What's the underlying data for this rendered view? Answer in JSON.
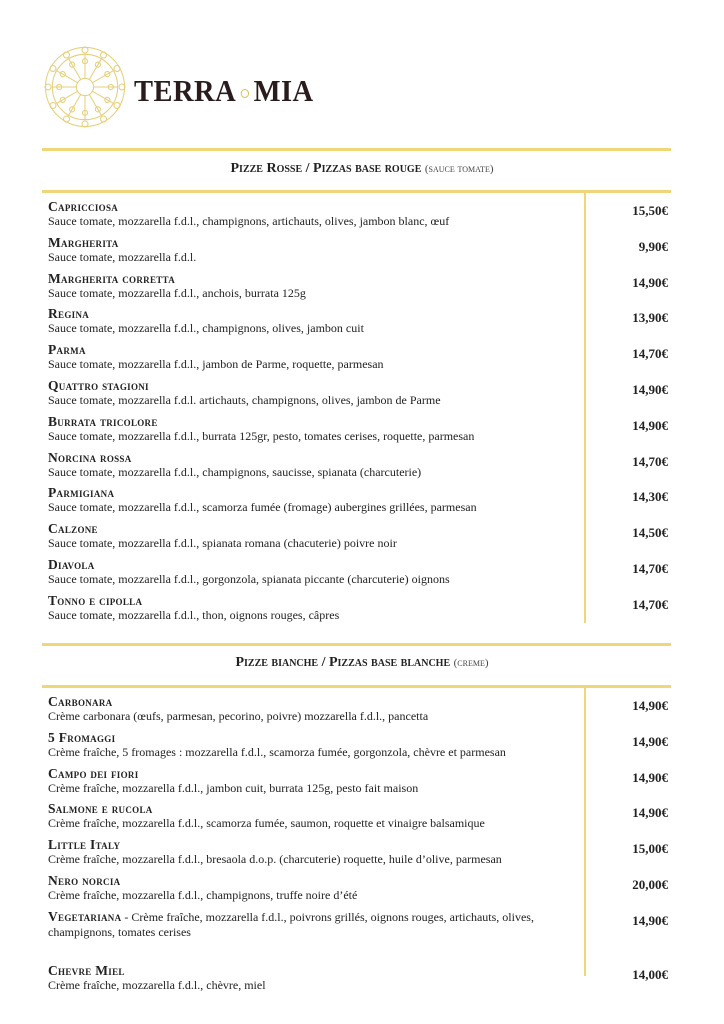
{
  "brand": {
    "name_left": "TERRA",
    "name_right": "MIA",
    "accent": "#f0d67a"
  },
  "sections": [
    {
      "title": "Pizze Rosse / Pizzas base rouge",
      "subtitle": "(sauce tomate)",
      "items": [
        {
          "name": "Capricciosa",
          "desc": "Sauce tomate, mozzarella f.d.l., champignons, artichauts, olives, jambon blanc, œuf",
          "price": "15,50€"
        },
        {
          "name": "Margherita",
          "desc": "Sauce tomate, mozzarella f.d.l.",
          "price": "9,90€"
        },
        {
          "name": "Margherita corretta",
          "desc": "Sauce tomate, mozzarella f.d.l., anchois, burrata 125g",
          "price": "14,90€"
        },
        {
          "name": "Regina",
          "desc": "Sauce tomate, mozzarella f.d.l., champignons, olives, jambon cuit",
          "price": "13,90€"
        },
        {
          "name": "Parma",
          "desc": "Sauce tomate, mozzarella f.d.l., jambon de Parme, roquette, parmesan",
          "price": "14,70€"
        },
        {
          "name": "Quattro stagioni",
          "desc": "Sauce tomate, mozzarella f.d.l. artichauts, champignons, olives, jambon de Parme",
          "price": "14,90€"
        },
        {
          "name": "Burrata tricolore",
          "desc": "Sauce tomate, mozzarella f.d.l., burrata 125gr, pesto, tomates cerises, roquette, parmesan",
          "price": "14,90€"
        },
        {
          "name": "Norcina rossa",
          "desc": "Sauce tomate, mozzarella f.d.l., champignons, saucisse, spianata (charcuterie)",
          "price": "14,70€"
        },
        {
          "name": "Parmigiana",
          "desc": "Sauce tomate, mozzarella f.d.l., scamorza fumée (fromage) aubergines grillées, parmesan",
          "price": "14,30€"
        },
        {
          "name": "Calzone",
          "desc": "Sauce tomate, mozzarella f.d.l., spianata romana (chacuterie) poivre noir",
          "price": "14,50€"
        },
        {
          "name": "Diavola",
          "desc": "Sauce tomate, mozzarella f.d.l., gorgonzola, spianata piccante (charcuterie) oignons",
          "price": "14,70€"
        },
        {
          "name": "Tonno e cipolla",
          "desc": "Sauce tomate, mozzarella f.d.l., thon, oignons rouges, câpres",
          "price": "14,70€"
        }
      ]
    },
    {
      "title": "Pizze bianche / Pizzas base blanche",
      "subtitle": "(creme)",
      "items": [
        {
          "name": "Carbonara",
          "desc": "Crème carbonara (œufs, parmesan, pecorino, poivre) mozzarella f.d.l., pancetta",
          "price": "14,90€"
        },
        {
          "name": "5 Fromaggi",
          "desc": "Crème fraîche, 5 fromages : mozzarella f.d.l., scamorza fumée, gorgonzola, chèvre et parmesan",
          "price": "14,90€"
        },
        {
          "name": "Campo dei fiori",
          "desc": "Crème fraîche, mozzarella f.d.l., jambon cuit, burrata 125g, pesto fait maison",
          "price": "14,90€"
        },
        {
          "name": "Salmone e rucola",
          "desc": "Crème fraîche, mozzarella f.d.l., scamorza fumée, saumon, roquette et vinaigre balsamique",
          "price": "14,90€"
        },
        {
          "name": "Little Italy",
          "desc": "Crème fraîche, mozzarella f.d.l., bresaola d.o.p. (charcuterie) roquette, huile d’olive, parmesan",
          "price": "15,00€"
        },
        {
          "name": "Nero norcia",
          "desc": "Crème fraîche, mozzarella f.d.l., champignons, truffe noire d’été",
          "price": "20,00€"
        },
        {
          "name": "Vegetariana",
          "desc": "- Crème fraîche, mozzarella f.d.l., poivrons grillés, oignons rouges, artichauts, olives, champignons, tomates cerises",
          "price": "14,90€",
          "inline": true
        },
        {
          "name": "Chevre Miel",
          "desc": "Crème fraîche, mozzarella f.d.l., chèvre, miel",
          "price": "14,00€"
        }
      ]
    }
  ]
}
